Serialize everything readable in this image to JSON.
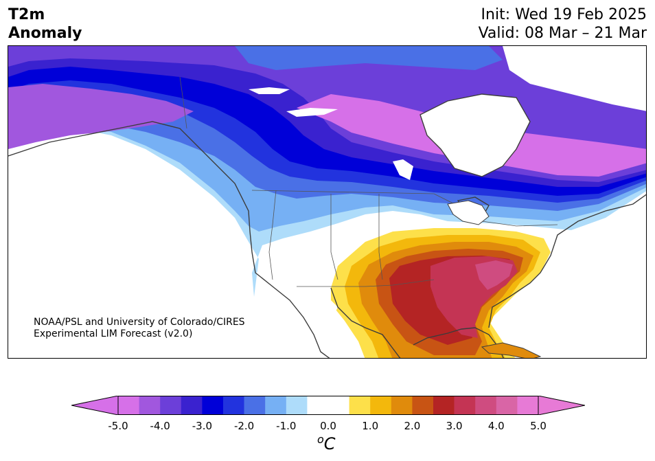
{
  "header": {
    "title_line1": "T2m",
    "title_line2": "Anomaly",
    "init": "Init: Wed 19 Feb 2025",
    "valid": "Valid: 08 Mar – 21 Mar"
  },
  "credit": {
    "line1": "NOAA/PSL and University of Colorado/CIRES",
    "line2": "Experimental LIM Forecast (v2.0)"
  },
  "colorbar": {
    "unit_symbol": "C",
    "unit_prefix": "o",
    "range": [
      -5.0,
      5.0
    ],
    "extend": "both",
    "tick_labels": [
      "-5.0",
      "-4.0",
      "-3.0",
      "-2.0",
      "-1.0",
      "0.0",
      "1.0",
      "2.0",
      "3.0",
      "4.0",
      "5.0"
    ],
    "colors": [
      "#d670e8",
      "#a157de",
      "#6c3fd9",
      "#3a22cf",
      "#0000d8",
      "#2233de",
      "#4a70e6",
      "#76b0f4",
      "#aedcfa",
      "#ffffff",
      "#ffffff",
      "#fde04a",
      "#f3b80c",
      "#e08b0c",
      "#c85414",
      "#b42424",
      "#c43454",
      "#cf4c80",
      "#d965a6",
      "#e77ad6"
    ],
    "under_color": "#d670e8",
    "over_color": "#e77ad6"
  }
}
